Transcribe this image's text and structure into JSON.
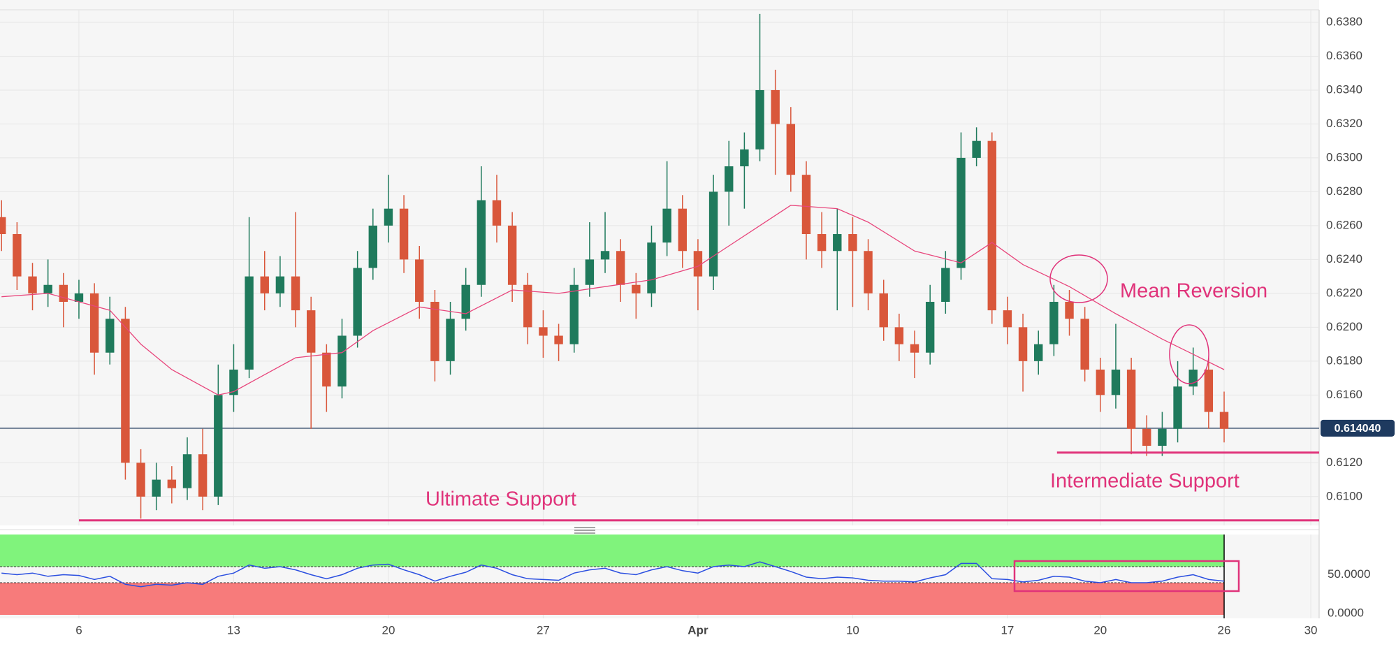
{
  "chart_data": [
    {
      "type": "candlestick",
      "x": [
        -2.5,
        -2,
        -1.5,
        -1,
        -0.5,
        0,
        0.5,
        1,
        1.5,
        2,
        2.5,
        3,
        3.5,
        4,
        4.5,
        5,
        5.5,
        6,
        6.5,
        7,
        7.5,
        8,
        8.5,
        9,
        9.5,
        10,
        10.5,
        11,
        11.5,
        12,
        12.5,
        13,
        13.5,
        14,
        14.5,
        15,
        15.5,
        16,
        16.5,
        17,
        17.5,
        18,
        18.5,
        19,
        19.5,
        20,
        20.5,
        21,
        21.5,
        22,
        22.5,
        23,
        23.5,
        24,
        24.5,
        25,
        25.5,
        26,
        26.5,
        27,
        27.5,
        28,
        28.5,
        29,
        29.5,
        30,
        30.5,
        31,
        31.5,
        32,
        32.5,
        33,
        33.5,
        34,
        34.5,
        35,
        35.5,
        36,
        36.5,
        37
      ],
      "open": [
        0.6265,
        0.6255,
        0.623,
        0.622,
        0.6225,
        0.6215,
        0.622,
        0.6185,
        0.6205,
        0.612,
        0.61,
        0.611,
        0.6105,
        0.6125,
        0.61,
        0.616,
        0.6175,
        0.623,
        0.622,
        0.623,
        0.621,
        0.6185,
        0.6165,
        0.6195,
        0.6235,
        0.626,
        0.627,
        0.624,
        0.6215,
        0.618,
        0.6205,
        0.6225,
        0.6275,
        0.626,
        0.6225,
        0.62,
        0.6195,
        0.619,
        0.6225,
        0.624,
        0.6245,
        0.6225,
        0.622,
        0.625,
        0.627,
        0.6245,
        0.623,
        0.628,
        0.6295,
        0.6305,
        0.634,
        0.632,
        0.629,
        0.6255,
        0.6245,
        0.6255,
        0.6245,
        0.622,
        0.62,
        0.619,
        0.6185,
        0.6215,
        0.6235,
        0.63,
        0.631,
        0.621,
        0.62,
        0.618,
        0.619,
        0.6215,
        0.6205,
        0.6175,
        0.616,
        0.6175,
        0.614,
        0.613,
        0.614,
        0.6165,
        0.6175,
        0.615
      ],
      "high": [
        0.6275,
        0.6262,
        0.6238,
        0.624,
        0.6232,
        0.6228,
        0.6226,
        0.6218,
        0.6212,
        0.6128,
        0.612,
        0.6118,
        0.6135,
        0.614,
        0.6178,
        0.619,
        0.6265,
        0.6245,
        0.6242,
        0.6268,
        0.6218,
        0.619,
        0.6205,
        0.6245,
        0.627,
        0.629,
        0.6278,
        0.6248,
        0.6222,
        0.6215,
        0.6235,
        0.6295,
        0.629,
        0.6268,
        0.6232,
        0.621,
        0.6202,
        0.6235,
        0.6262,
        0.6268,
        0.6252,
        0.6232,
        0.626,
        0.6298,
        0.6278,
        0.6252,
        0.629,
        0.631,
        0.6315,
        0.6385,
        0.6352,
        0.633,
        0.6298,
        0.6268,
        0.627,
        0.6265,
        0.6252,
        0.6228,
        0.6208,
        0.6198,
        0.6225,
        0.6245,
        0.6315,
        0.6318,
        0.6315,
        0.6218,
        0.6208,
        0.6198,
        0.6225,
        0.6222,
        0.6212,
        0.6182,
        0.6202,
        0.6182,
        0.6148,
        0.615,
        0.618,
        0.6188,
        0.6182,
        0.6162
      ],
      "low": [
        0.6245,
        0.6222,
        0.621,
        0.6212,
        0.62,
        0.6205,
        0.6172,
        0.6178,
        0.611,
        0.6087,
        0.6092,
        0.6096,
        0.6098,
        0.6092,
        0.6095,
        0.615,
        0.617,
        0.621,
        0.6212,
        0.62,
        0.614,
        0.615,
        0.6158,
        0.6188,
        0.6228,
        0.625,
        0.6232,
        0.6205,
        0.6168,
        0.6172,
        0.6198,
        0.6218,
        0.625,
        0.6215,
        0.619,
        0.6182,
        0.618,
        0.6185,
        0.6218,
        0.6232,
        0.6215,
        0.6205,
        0.6212,
        0.6242,
        0.6235,
        0.621,
        0.6222,
        0.626,
        0.627,
        0.6298,
        0.629,
        0.628,
        0.624,
        0.6235,
        0.621,
        0.6212,
        0.621,
        0.6192,
        0.618,
        0.617,
        0.6178,
        0.6208,
        0.6228,
        0.6295,
        0.6202,
        0.619,
        0.6162,
        0.6172,
        0.6183,
        0.6195,
        0.6168,
        0.615,
        0.6152,
        0.6125,
        0.6124,
        0.6124,
        0.6132,
        0.616,
        0.614,
        0.6132
      ],
      "close": [
        0.6255,
        0.623,
        0.622,
        0.6225,
        0.6215,
        0.622,
        0.6185,
        0.6205,
        0.612,
        0.61,
        0.611,
        0.6105,
        0.6125,
        0.61,
        0.616,
        0.6175,
        0.623,
        0.622,
        0.623,
        0.621,
        0.6185,
        0.6165,
        0.6195,
        0.6235,
        0.626,
        0.627,
        0.624,
        0.6215,
        0.618,
        0.6205,
        0.6225,
        0.6275,
        0.626,
        0.6225,
        0.62,
        0.6195,
        0.619,
        0.6225,
        0.624,
        0.6245,
        0.6225,
        0.622,
        0.625,
        0.627,
        0.6245,
        0.623,
        0.628,
        0.6295,
        0.6305,
        0.634,
        0.632,
        0.629,
        0.6255,
        0.6245,
        0.6255,
        0.6245,
        0.622,
        0.62,
        0.619,
        0.6185,
        0.6215,
        0.6235,
        0.63,
        0.631,
        0.621,
        0.62,
        0.618,
        0.619,
        0.6215,
        0.6205,
        0.6175,
        0.616,
        0.6175,
        0.614,
        0.613,
        0.614,
        0.6165,
        0.6175,
        0.615,
        0.614
      ],
      "up_color": "#1f7a5c",
      "down_color": "#d9573b",
      "moving_average": {
        "x": [
          -2.5,
          -1,
          0,
          1,
          2,
          3,
          4.5,
          5,
          6,
          7,
          8.5,
          9.5,
          11,
          12.5,
          14,
          15.5,
          17,
          18.5,
          20,
          21,
          22,
          23,
          24.5,
          25.5,
          27,
          28.5,
          29.5,
          30.5,
          32,
          33.5,
          35,
          36,
          37
        ],
        "values": [
          0.6218,
          0.622,
          0.6215,
          0.621,
          0.619,
          0.6175,
          0.616,
          0.6162,
          0.6172,
          0.6182,
          0.6185,
          0.6198,
          0.6212,
          0.6208,
          0.6222,
          0.622,
          0.6224,
          0.6228,
          0.6236,
          0.6248,
          0.626,
          0.6272,
          0.627,
          0.6262,
          0.6245,
          0.6238,
          0.625,
          0.6237,
          0.6224,
          0.6208,
          0.6193,
          0.6184,
          0.6175
        ],
        "color": "#e8467c"
      },
      "xlim": [
        -2.55,
        40.07
      ],
      "ylim": [
        0.6083,
        0.6387
      ],
      "yticks": [
        {
          "value": 0.61,
          "label": "0.6100"
        },
        {
          "value": 0.612,
          "label": "0.6120"
        },
        {
          "value": 0.614,
          "label": "0.6140"
        },
        {
          "value": 0.616,
          "label": "0.6160"
        },
        {
          "value": 0.618,
          "label": "0.6180"
        },
        {
          "value": 0.62,
          "label": "0.6200"
        },
        {
          "value": 0.622,
          "label": "0.6220"
        },
        {
          "value": 0.624,
          "label": "0.6240"
        },
        {
          "value": 0.626,
          "label": "0.6260"
        },
        {
          "value": 0.628,
          "label": "0.6280"
        },
        {
          "value": 0.63,
          "label": "0.6300"
        },
        {
          "value": 0.632,
          "label": "0.6320"
        },
        {
          "value": 0.634,
          "label": "0.6340"
        },
        {
          "value": 0.636,
          "label": "0.6360"
        },
        {
          "value": 0.638,
          "label": "0.6380"
        }
      ],
      "grid": true,
      "current_price": {
        "value": 0.61404,
        "label": "0.614040",
        "color": "#1e3a5f"
      },
      "annotation": "Mean Reversion",
      "support_color": "#e0337a",
      "support_lines": [
        {
          "label": "Ultimate Support",
          "value": 0.6086,
          "from": 0
        },
        {
          "label": "Intermediate Support",
          "value": 0.6126,
          "from": 31.6
        }
      ]
    },
    {
      "type": "line",
      "x": [
        -2.5,
        -2,
        -1.5,
        -1,
        -0.5,
        0,
        0.5,
        1,
        1.5,
        2,
        2.5,
        3,
        3.5,
        4,
        4.5,
        5,
        5.5,
        6,
        6.5,
        7,
        7.5,
        8,
        8.5,
        9,
        9.5,
        10,
        10.5,
        11,
        11.5,
        12,
        12.5,
        13,
        13.5,
        14,
        14.5,
        15,
        15.5,
        16,
        16.5,
        17,
        17.5,
        18,
        18.5,
        19,
        19.5,
        20,
        20.5,
        21,
        21.5,
        22,
        22.5,
        23,
        23.5,
        24,
        24.5,
        25,
        25.5,
        26,
        26.5,
        27,
        27.5,
        28,
        28.5,
        29,
        29.5,
        30,
        30.5,
        31,
        31.5,
        32,
        32.5,
        33,
        33.5,
        34,
        34.5,
        35,
        35.5,
        36,
        36.5,
        37
      ],
      "values": [
        52,
        50,
        52,
        48,
        50,
        49,
        44,
        48,
        38,
        35,
        38,
        37,
        40,
        38,
        48,
        52,
        62,
        58,
        60,
        56,
        50,
        45,
        50,
        58,
        62,
        63,
        56,
        50,
        42,
        48,
        53,
        62,
        58,
        50,
        45,
        44,
        43,
        52,
        56,
        58,
        52,
        50,
        56,
        60,
        55,
        52,
        60,
        62,
        60,
        66,
        60,
        54,
        47,
        45,
        47,
        46,
        43,
        42,
        42,
        41,
        46,
        50,
        64,
        64,
        45,
        44,
        41,
        43,
        48,
        47,
        42,
        40,
        44,
        40,
        40,
        42,
        47,
        50,
        44,
        42
      ],
      "color": "#2b4fe0",
      "ylim": [
        0,
        100
      ],
      "yticks": [
        {
          "value": 0,
          "label": "0.0000"
        },
        {
          "value": 50,
          "label": "50.0000"
        }
      ],
      "bands": [
        {
          "range": [
            60,
            100
          ],
          "color": "#80f37c"
        },
        {
          "range": [
            0,
            40
          ],
          "color": "#f77b7b"
        }
      ],
      "xticks": [
        {
          "value": 0,
          "label": "6"
        },
        {
          "value": 5,
          "label": "13"
        },
        {
          "value": 10,
          "label": "20"
        },
        {
          "value": 15,
          "label": "27"
        },
        {
          "value": 20,
          "label": "Apr"
        },
        {
          "value": 25,
          "label": "10"
        },
        {
          "value": 30,
          "label": "17"
        },
        {
          "value": 33,
          "label": "20"
        },
        {
          "value": 37,
          "label": "26"
        },
        {
          "value": 39.8,
          "label": "30"
        }
      ]
    }
  ]
}
